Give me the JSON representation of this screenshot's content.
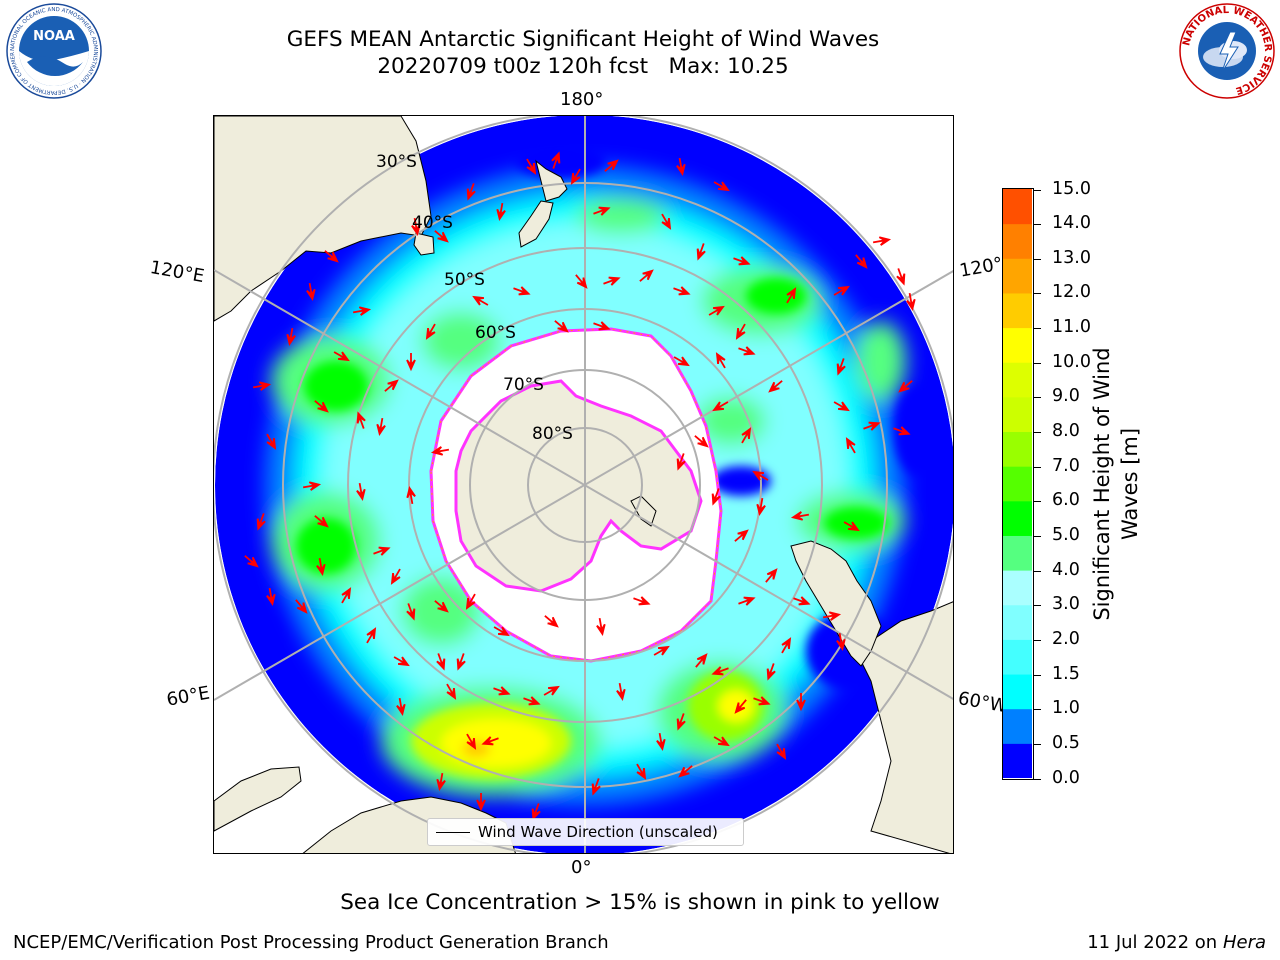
{
  "header": {
    "title_line1": "GEFS MEAN Antarctic Significant Height of Wind Waves",
    "title_line2": "20220709 t00z 120h fcst   Max: 10.25"
  },
  "logos": {
    "left": "noaa-logo",
    "right": "nws-logo",
    "left_text": "NOAA",
    "left_ring_text": "NATIONAL OCEANIC AND ATMOSPHERIC ADMINISTRATION · U.S. DEPARTMENT OF COMMERCE",
    "right_ring_text": "NATIONAL WEATHER SERVICE"
  },
  "map": {
    "projection": "south-polar-stereographic",
    "longitude_labels": {
      "top": "180°",
      "bottom": "0°",
      "upper_left": "120°E",
      "upper_right": "120°",
      "lower_left": "60°E",
      "lower_right": "60°W"
    },
    "latitude_labels": [
      "30°S",
      "40°S",
      "50°S",
      "60°S",
      "70°S",
      "80°S"
    ],
    "legend_label": "Wind Wave Direction (unscaled)",
    "colors": {
      "land": "#efeddc",
      "sea_ice": "#ffffff",
      "ice_edge": "#ff33ff",
      "arrow": "#ff0000",
      "grid": "#b0b0b0"
    }
  },
  "colorbar": {
    "title_line1": "Significant Height of Wind",
    "title_line2": "Waves [m]",
    "ticks": [
      "15.0",
      "14.0",
      "13.0",
      "12.0",
      "11.0",
      "10.0",
      "9.0",
      "8.0",
      "7.0",
      "6.0",
      "5.0",
      "4.0",
      "3.0",
      "2.0",
      "1.5",
      "1.0",
      "0.5",
      "0.0"
    ],
    "colors_bottom_to_top": [
      "#0000ff",
      "#0080ff",
      "#00ffff",
      "#44ffff",
      "#80ffff",
      "#aaffff",
      "#55ff80",
      "#00ff00",
      "#55ff00",
      "#99ff00",
      "#ccff00",
      "#ddff00",
      "#ffff00",
      "#ffcc00",
      "#ffa500",
      "#ff8000",
      "#ff5000",
      "#ff2000",
      "#ff0000"
    ]
  },
  "caption": "Sea Ice Concentration > 15% is shown in pink to yellow",
  "footer": {
    "left": "NCEP/EMC/Verification Post Processing Product Generation Branch",
    "right_date": "11 Jul 2022 on ",
    "right_host": "Hera"
  }
}
